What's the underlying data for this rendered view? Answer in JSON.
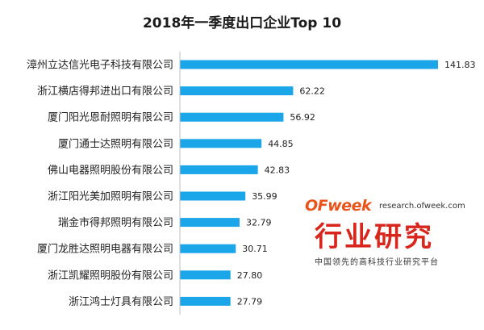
{
  "chart_data": {
    "type": "bar",
    "orientation": "horizontal",
    "title": "2018年一季度出口企业Top 10",
    "categories": [
      "漳州立达信光电子科技有限公司",
      "浙江横店得邦进出口有限公司",
      "厦门阳光恩耐照明有限公司",
      "厦门通士达照明有限公司",
      "佛山电器照明股份有限公司",
      "浙江阳光美加照明有限公司",
      "瑞金市得邦照明有限公司",
      "厦门龙胜达照明电器有限公司",
      "浙江凯耀照明股份有限公司",
      "浙江鸿士灯具有限公司"
    ],
    "values": [
      141.83,
      62.22,
      56.92,
      44.85,
      42.83,
      35.99,
      32.79,
      30.71,
      27.8,
      27.79
    ],
    "value_labels": [
      "141.83",
      "62.22",
      "56.92",
      "44.85",
      "42.83",
      "35.99",
      "32.79",
      "30.71",
      "27.80",
      "27.79"
    ],
    "xlim": [
      0,
      150
    ],
    "bar_color": "#1aa6e8",
    "grid": false,
    "legend": "none"
  },
  "watermark": {
    "logo": "OFweek",
    "url": "research.ofweek.com",
    "title": "行业研究",
    "slogan": "中国领先的高科技行业研究平台",
    "logo_color": "#e8541a",
    "title_color": "#d9261c"
  }
}
